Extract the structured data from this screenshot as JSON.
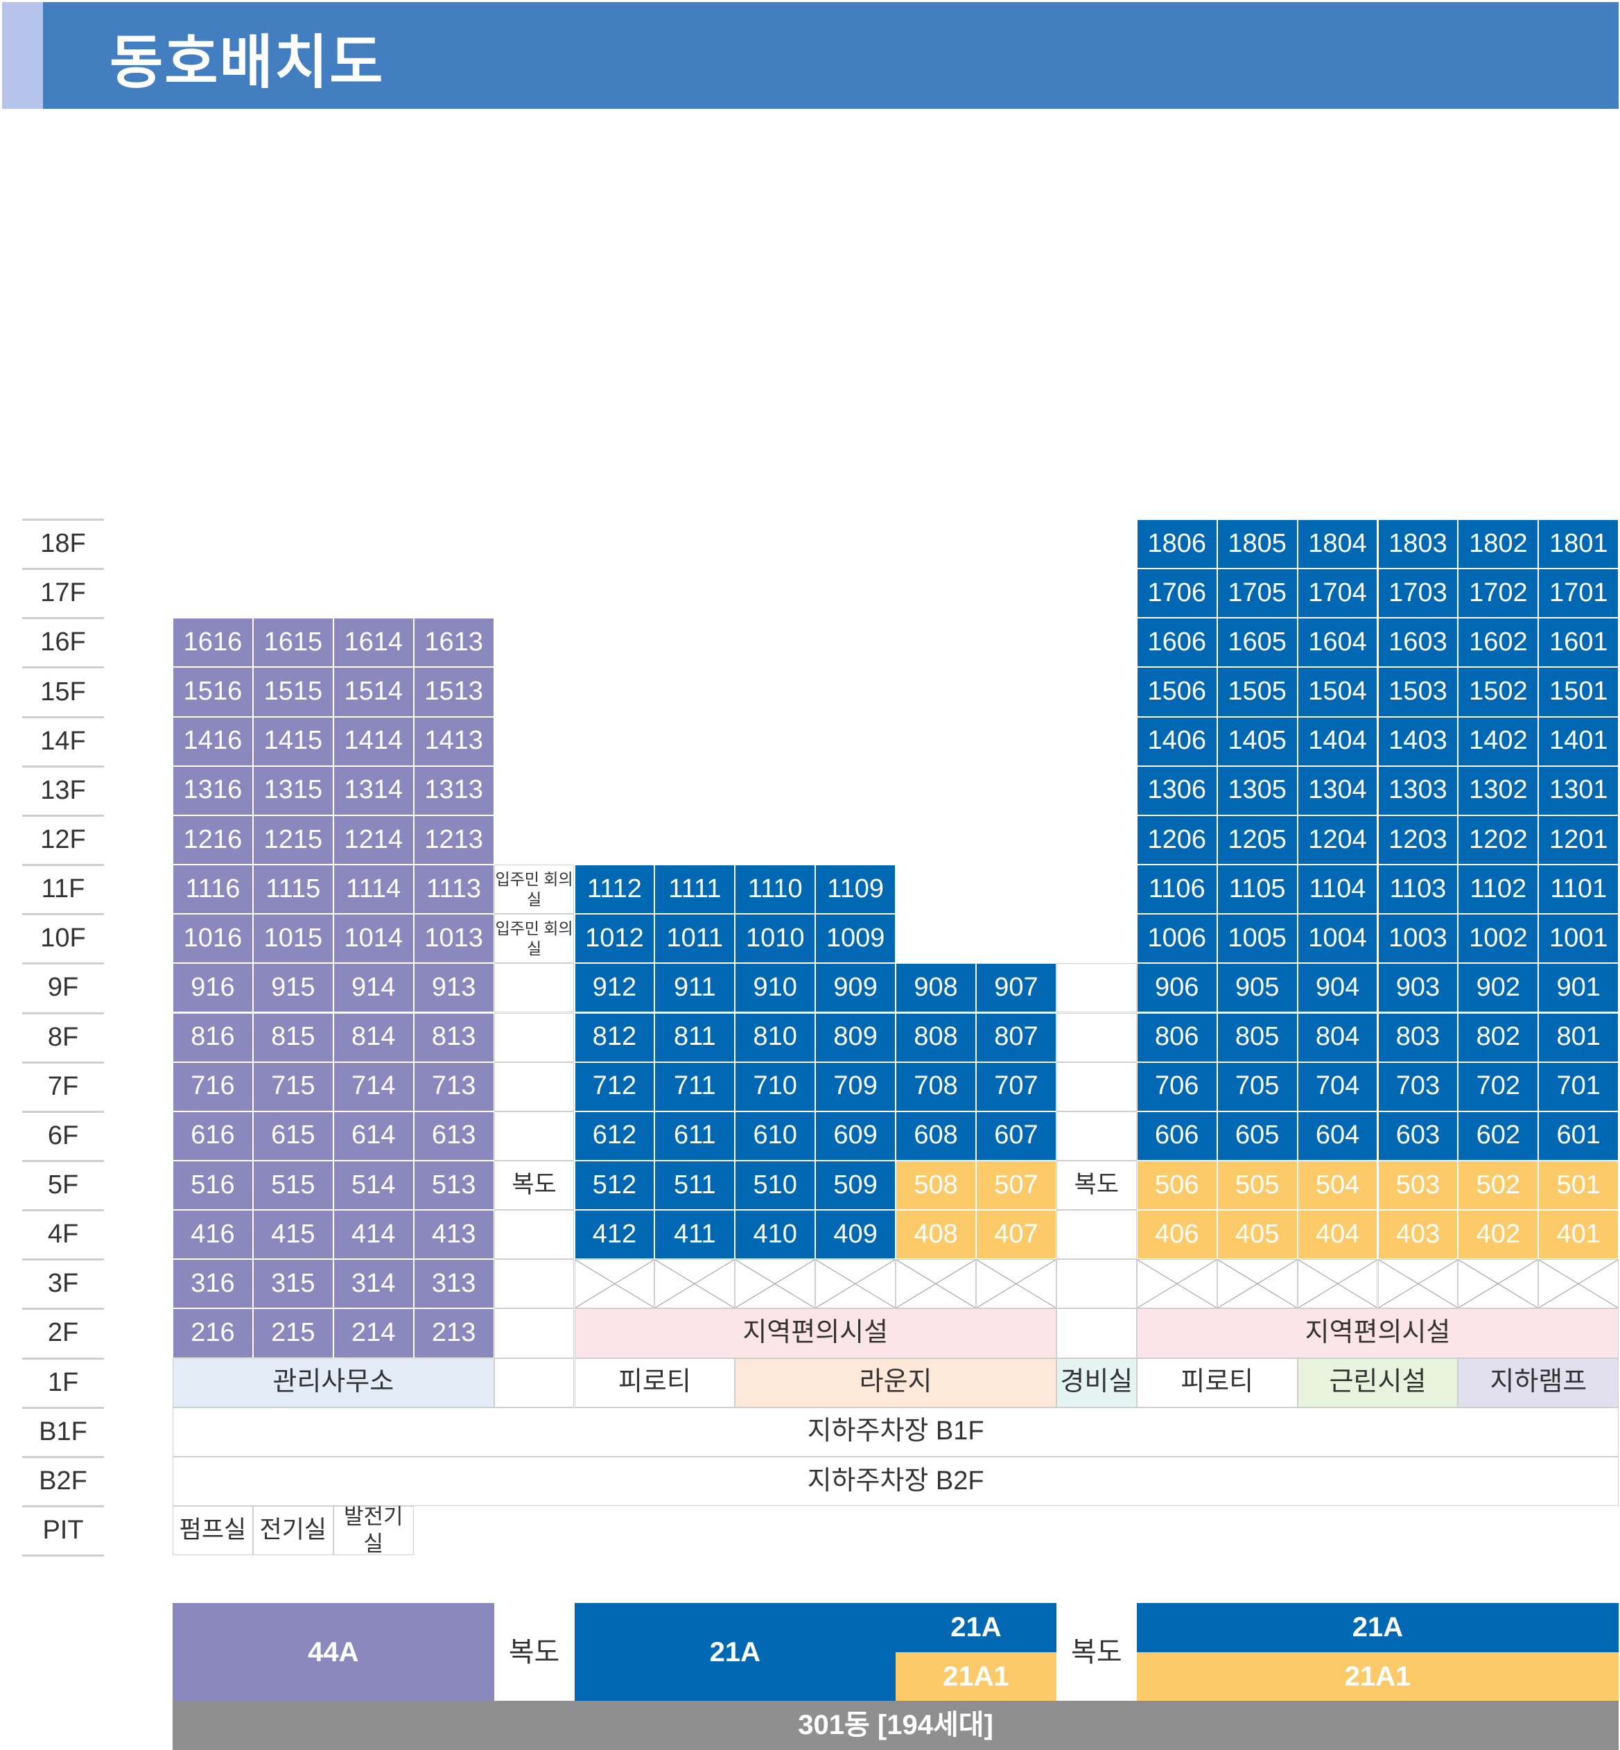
{
  "title": "동호배치도",
  "floors": [
    "18F",
    "17F",
    "16F",
    "15F",
    "14F",
    "13F",
    "12F",
    "11F",
    "10F",
    "9F",
    "8F",
    "7F",
    "6F",
    "5F",
    "4F",
    "3F",
    "2F",
    "1F",
    "B1F",
    "B2F",
    "PIT"
  ],
  "labels": {
    "resident_meeting": "입주민 회의실",
    "corridor": "복도",
    "local_facility": "지역편의시설",
    "management_office": "관리사무소",
    "piloti": "피로티",
    "lounge": "라운지",
    "guard_room": "경비실",
    "neighborhood_facility": "근린시설",
    "underground_ramp": "지하램프",
    "parking_b1": "지하주차장 B1F",
    "parking_b2": "지하주차장 B2F",
    "pump_room": "펌프실",
    "electric_room": "전기실",
    "generator_room": "발전기실"
  },
  "legend": {
    "type_44a": "44A",
    "corridor": "복도",
    "type_21a": "21A",
    "type_21a1": "21A1",
    "building": "301동 [194세대]"
  },
  "colors": {
    "header": "#427ec0",
    "type_44a": "#8b88be",
    "type_21a": "#0068b3",
    "type_21a1": "#fdca6a",
    "local_facility": "#fbe5e8",
    "management_office": "#e3ecf7",
    "lounge": "#fde8da",
    "guard_room": "#e5f3f1",
    "neighborhood_facility": "#e7f3dd",
    "underground_ramp": "#e2e0ef",
    "building_bar": "#8f8f8f"
  }
}
